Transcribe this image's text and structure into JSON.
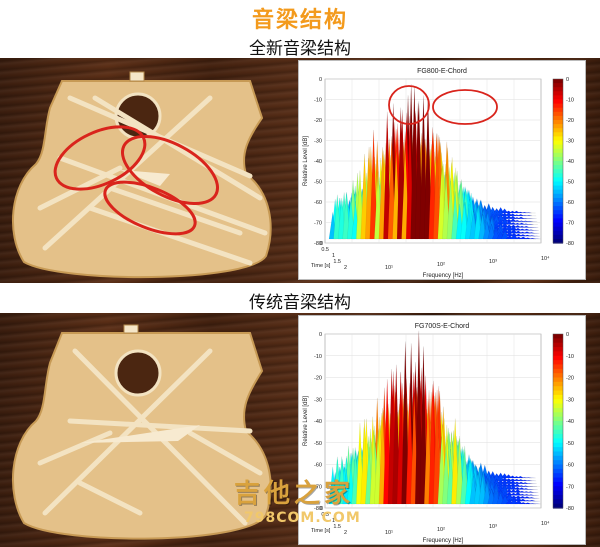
{
  "page": {
    "title": "音梁结构",
    "title_color": "#f39a1c"
  },
  "sections": [
    {
      "heading": "全新音梁结构",
      "chart": {
        "title": "FG800-E-Chord",
        "ylabel": "Relative Level [dB]",
        "xlabel": "Frequency [Hz]",
        "zlabel": "Time [s]",
        "yticks": [
          "0",
          "-10",
          "-20",
          "-30",
          "-40",
          "-50",
          "-60",
          "-70",
          "-80"
        ],
        "time_ticks": [
          "0",
          "0.5",
          "1",
          "1.5",
          "2"
        ],
        "freq_ticks": [
          "10¹",
          "10²",
          "10³",
          "10⁴"
        ],
        "colorbar_ticks": [
          "0",
          "-10",
          "-20",
          "-30",
          "-40",
          "-50",
          "-60",
          "-70",
          "-80"
        ],
        "highlight_circles": 2
      },
      "guitar_highlight_circles": 3
    },
    {
      "heading": "传统音梁结构",
      "chart": {
        "title": "FG700S-E-Chord",
        "ylabel": "Relative Level [dB]",
        "xlabel": "Frequency [Hz]",
        "zlabel": "Time [s]",
        "yticks": [
          "0",
          "-10",
          "-20",
          "-30",
          "-40",
          "-50",
          "-60",
          "-70",
          "-80"
        ],
        "time_ticks": [
          "0",
          "0.5",
          "1",
          "1.5",
          "2"
        ],
        "freq_ticks": [
          "10¹",
          "10²",
          "10³",
          "10⁴"
        ],
        "colorbar_ticks": [
          "0",
          "-10",
          "-20",
          "-30",
          "-40",
          "-50",
          "-60",
          "-70",
          "-80"
        ],
        "highlight_circles": 0
      },
      "guitar_highlight_circles": 0
    }
  ],
  "watermark": {
    "name": "吉他之家",
    "url": "798COM.COM"
  },
  "colors": {
    "highlight": "#d9241c",
    "guitar_top": "#e7c58e",
    "brace": "#f3e3c2"
  }
}
